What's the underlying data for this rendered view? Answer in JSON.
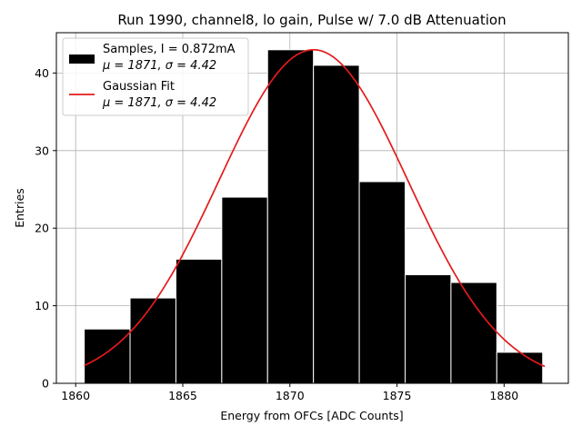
{
  "chart_data": {
    "type": "bar",
    "title": "Run 1990, channel8, lo gain, Pulse w/ 7.0 dB Attenuation",
    "xlabel": "Energy from OFCs [ADC Counts]",
    "ylabel": "Entries",
    "xlim": [
      1859.1,
      1883.0
    ],
    "ylim": [
      0,
      45.2
    ],
    "grid": true,
    "x_ticks": [
      1860,
      1865,
      1870,
      1875,
      1880
    ],
    "y_ticks": [
      0,
      10,
      20,
      30,
      40
    ],
    "histogram": {
      "name": "Samples, I = 0.872mA",
      "stats": "μ = 1871, σ = 4.42",
      "bin_edges": [
        1860.4,
        1862.54,
        1864.68,
        1866.82,
        1868.96,
        1871.1,
        1873.24,
        1875.38,
        1877.52,
        1879.66,
        1881.8
      ],
      "counts": [
        7,
        11,
        16,
        24,
        43,
        41,
        26,
        14,
        13,
        4
      ],
      "color": "#000000",
      "edge_color": "#ffffff"
    },
    "fit": {
      "name": "Gaussian Fit",
      "stats": "μ = 1871, σ = 4.42",
      "mu": 1871.1,
      "sigma": 4.42,
      "amplitude": 43,
      "x_range": [
        1860.4,
        1881.9
      ],
      "color": "#e41a1c"
    },
    "legend_position": "top-left"
  }
}
